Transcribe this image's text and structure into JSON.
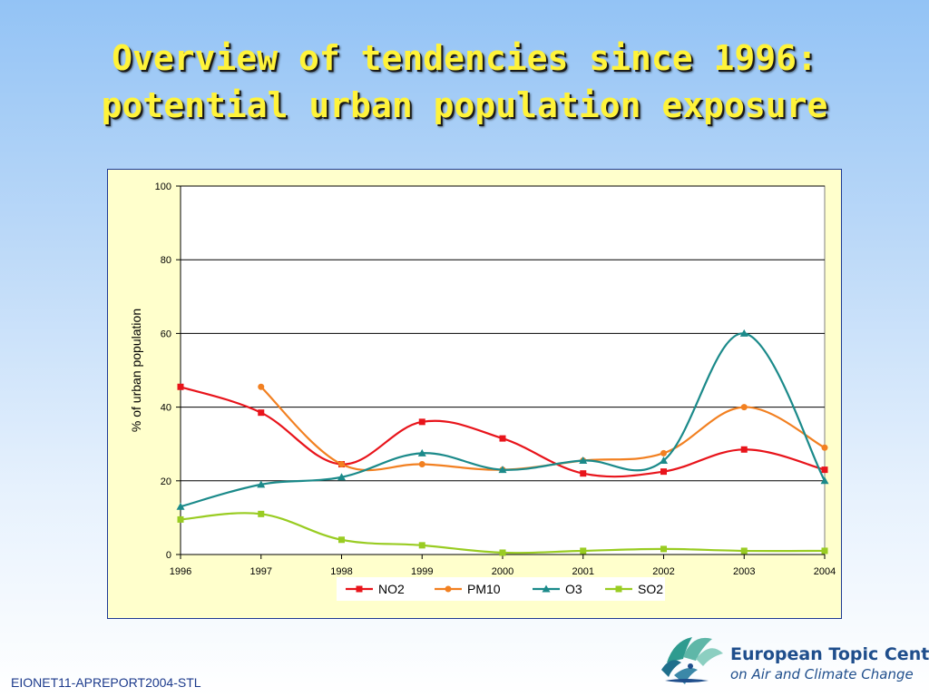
{
  "slide": {
    "title_line1": "Overview of tendencies since 1996:",
    "title_line2": "potential urban population exposure",
    "footer_code": "EIONET11-APREPORT2004-STL",
    "logo_line1": "European Topic Centre",
    "logo_line2": "on Air and Climate Change"
  },
  "colors": {
    "NO2": "#e8141b",
    "PM10": "#f28021",
    "O3": "#1b8a8a",
    "SO2": "#99cc22",
    "chart_background": "#ffffcc",
    "title": "#fff33a"
  },
  "chart_data": {
    "type": "line",
    "title": "",
    "xlabel": "",
    "ylabel": "% of urban population",
    "categories": [
      "1996",
      "1997",
      "1998",
      "1999",
      "2000",
      "2001",
      "2002",
      "2003",
      "2004"
    ],
    "ylim": [
      0,
      100
    ],
    "yticks": [
      0,
      20,
      40,
      60,
      80,
      100
    ],
    "grid": "horizontal",
    "legend_position": "bottom",
    "series": [
      {
        "name": "NO2",
        "marker": "square",
        "values": [
          45.5,
          38.5,
          24.5,
          36,
          31.5,
          22,
          22.5,
          28.5,
          23
        ]
      },
      {
        "name": "PM10",
        "marker": "circle",
        "values": [
          null,
          45.5,
          24.5,
          24.5,
          23,
          25.5,
          27.5,
          40,
          29
        ]
      },
      {
        "name": "O3",
        "marker": "triangle",
        "values": [
          13,
          19,
          21,
          27.5,
          23,
          25.5,
          25.5,
          60,
          20
        ]
      },
      {
        "name": "SO2",
        "marker": "square",
        "values": [
          9.5,
          11,
          4,
          2.5,
          0.5,
          1,
          1.5,
          1,
          1
        ]
      }
    ]
  }
}
